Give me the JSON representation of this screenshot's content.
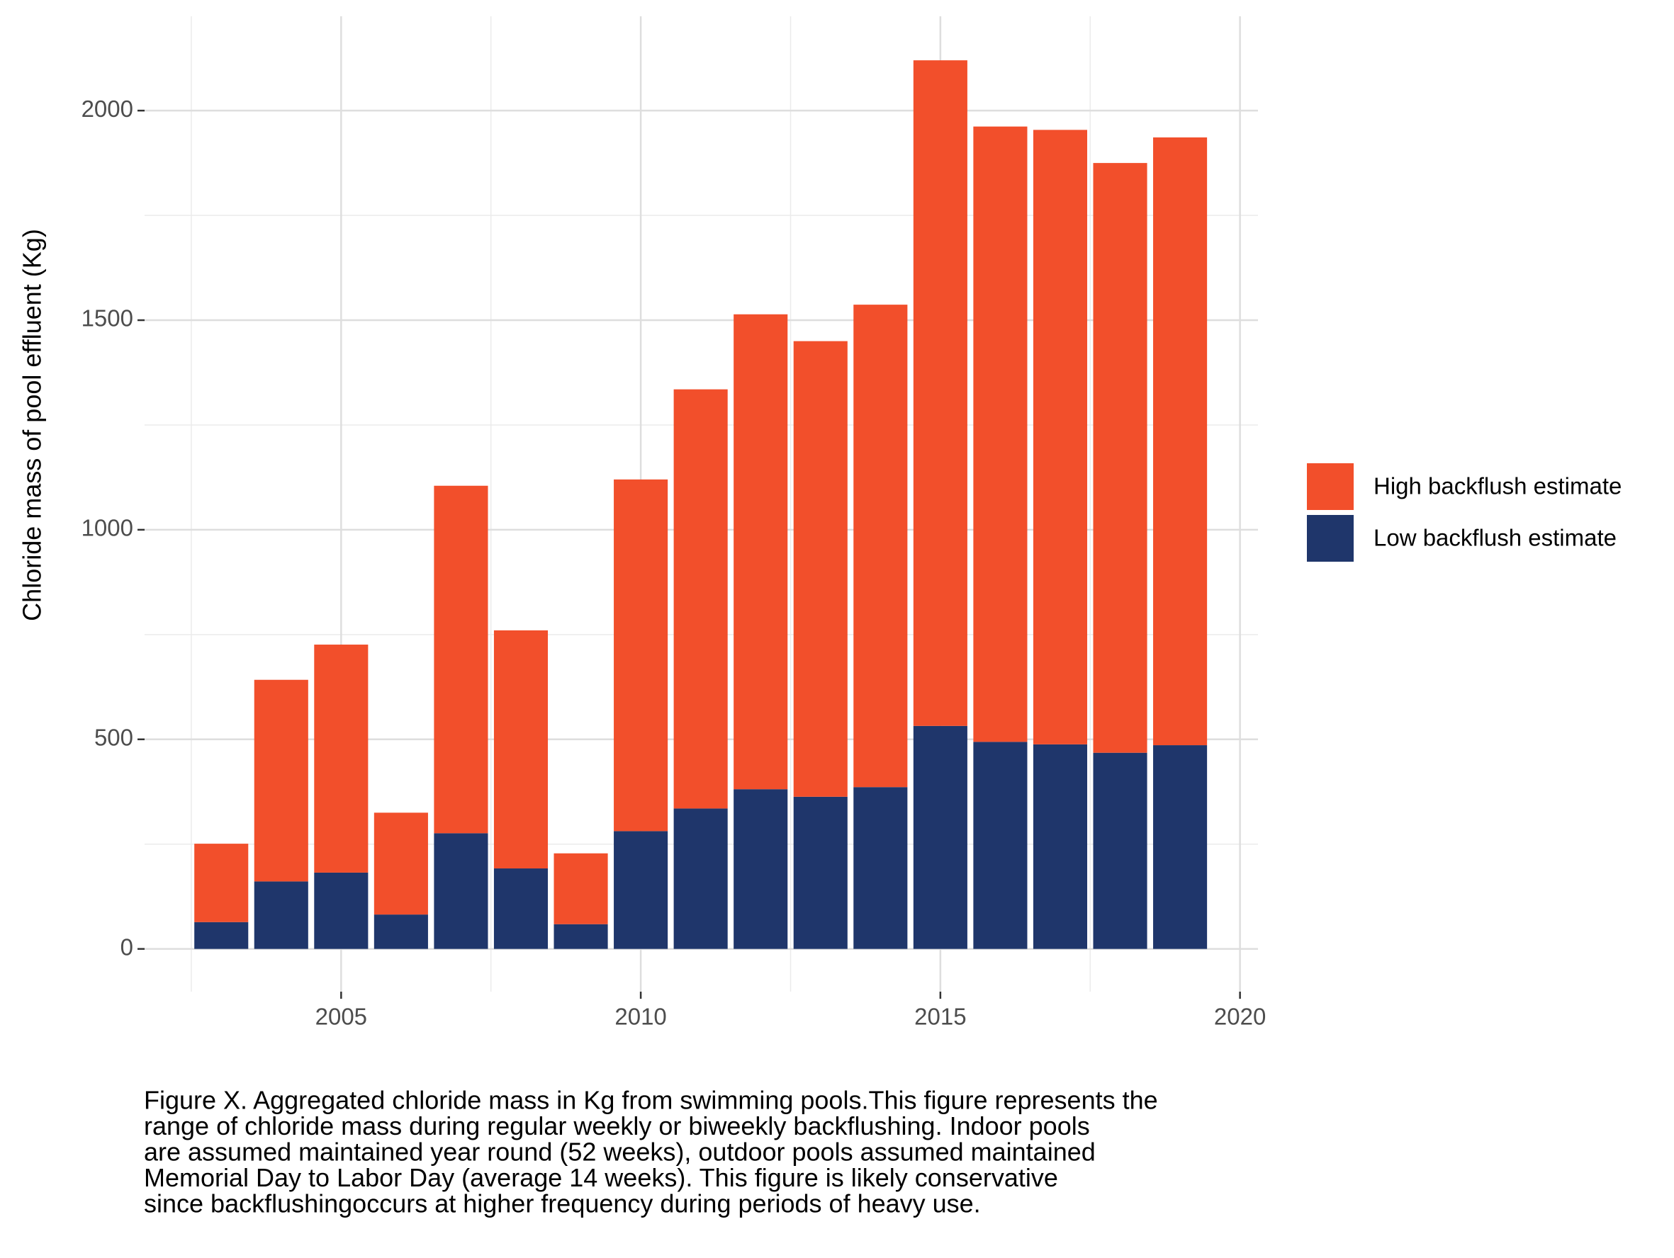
{
  "chart_data": {
    "type": "stacked_bar",
    "y_label": "Chloride mass of pool effluent  (Kg)",
    "x": [
      2003,
      2004,
      2005,
      2006,
      2007,
      2008,
      2009,
      2010,
      2011,
      2012,
      2013,
      2014,
      2015,
      2016,
      2017,
      2018,
      2019
    ],
    "series": [
      {
        "name": "Low backflush estimate",
        "color": "#1f366b",
        "values": [
          64,
          161,
          182,
          82,
          276,
          192,
          59,
          281,
          335,
          381,
          363,
          386,
          532,
          494,
          488,
          468,
          486
        ]
      },
      {
        "name": "High backflush estimate",
        "color": "#f24f2b",
        "values": [
          187,
          481,
          544,
          243,
          829,
          568,
          169,
          839,
          1000,
          1133,
          1087,
          1151,
          1588,
          1468,
          1466,
          1407,
          1450
        ]
      }
    ],
    "xlim": [
      2001.72,
      2020.3
    ],
    "xticks": [
      2005,
      2010,
      2015,
      2020
    ],
    "ylim": [
      -102,
      2225
    ],
    "yticks": [
      0,
      500,
      1000,
      1500,
      2000
    ],
    "grid": true,
    "legend": "right",
    "caption": [
      "Figure X. Aggregated chloride mass in Kg from swimming pools.This figure represents the",
      "range of chloride mass during regular weekly or biweekly backflushing. Indoor pools",
      "are assumed maintained year round (52 weeks), outdoor pools assumed maintained",
      "Memorial Day to Labor Day (average 14 weeks). This figure is likely conservative",
      "since backflushingoccurs at higher frequency during periods of heavy use."
    ]
  }
}
